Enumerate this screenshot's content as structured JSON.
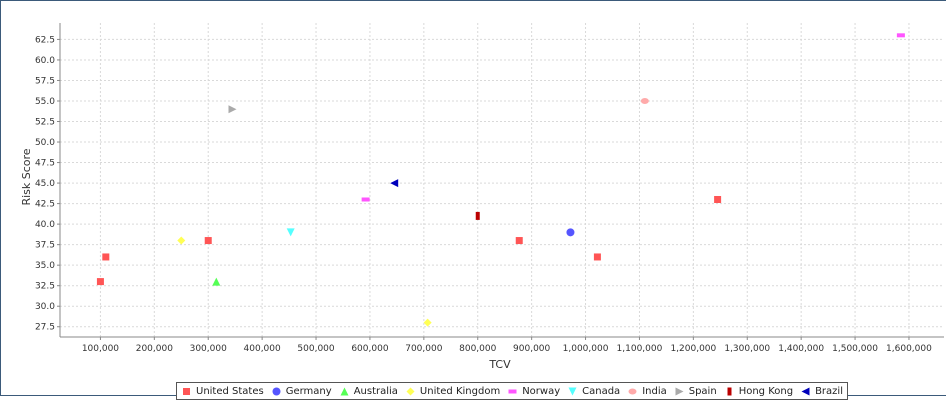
{
  "chart_data": {
    "type": "scatter",
    "title": "",
    "xlabel": "TCV",
    "ylabel": "Risk Score",
    "xlim": [
      25000,
      1665000
    ],
    "ylim": [
      26.25,
      64.5
    ],
    "x_ticks": [
      100000,
      200000,
      300000,
      400000,
      500000,
      600000,
      700000,
      800000,
      900000,
      1000000,
      1100000,
      1200000,
      1300000,
      1400000,
      1500000,
      1600000
    ],
    "y_ticks": [
      27.5,
      30.0,
      32.5,
      35.0,
      37.5,
      40.0,
      42.5,
      45.0,
      47.5,
      50.0,
      52.5,
      55.0,
      57.5,
      60.0,
      62.5
    ],
    "grid": true,
    "legend_position": "bottom",
    "series": [
      {
        "name": "United States",
        "color": "#ff5555",
        "marker": "square",
        "points": [
          [
            100000,
            33
          ],
          [
            110000,
            36
          ],
          [
            300000,
            38
          ],
          [
            877000,
            38
          ],
          [
            1022000,
            36
          ],
          [
            1245000,
            43
          ]
        ]
      },
      {
        "name": "Germany",
        "color": "#5555ff",
        "marker": "circle",
        "points": [
          [
            972000,
            39
          ]
        ]
      },
      {
        "name": "Australia",
        "color": "#55ff55",
        "marker": "triangle-up",
        "points": [
          [
            315000,
            33
          ]
        ]
      },
      {
        "name": "United Kingdom",
        "color": "#ffff55",
        "marker": "diamond",
        "points": [
          [
            250000,
            38
          ],
          [
            707000,
            28
          ]
        ]
      },
      {
        "name": "Norway",
        "color": "#ff55ff",
        "marker": "rect-horizontal",
        "points": [
          [
            592000,
            43
          ],
          [
            1585000,
            63
          ]
        ]
      },
      {
        "name": "Canada",
        "color": "#55ffff",
        "marker": "triangle-down",
        "points": [
          [
            453000,
            39
          ]
        ]
      },
      {
        "name": "India",
        "color": "#ffaaaa",
        "marker": "ellipse",
        "points": [
          [
            1110000,
            55
          ]
        ]
      },
      {
        "name": "Spain",
        "color": "#aaaaaa",
        "marker": "triangle-right",
        "points": [
          [
            345000,
            54
          ]
        ]
      },
      {
        "name": "Hong Kong",
        "color": "#bb0000",
        "marker": "rect-vertical",
        "points": [
          [
            800000,
            41
          ]
        ]
      },
      {
        "name": "Brazil",
        "color": "#0000bb",
        "marker": "triangle-left",
        "points": [
          [
            645000,
            45
          ]
        ]
      }
    ]
  }
}
